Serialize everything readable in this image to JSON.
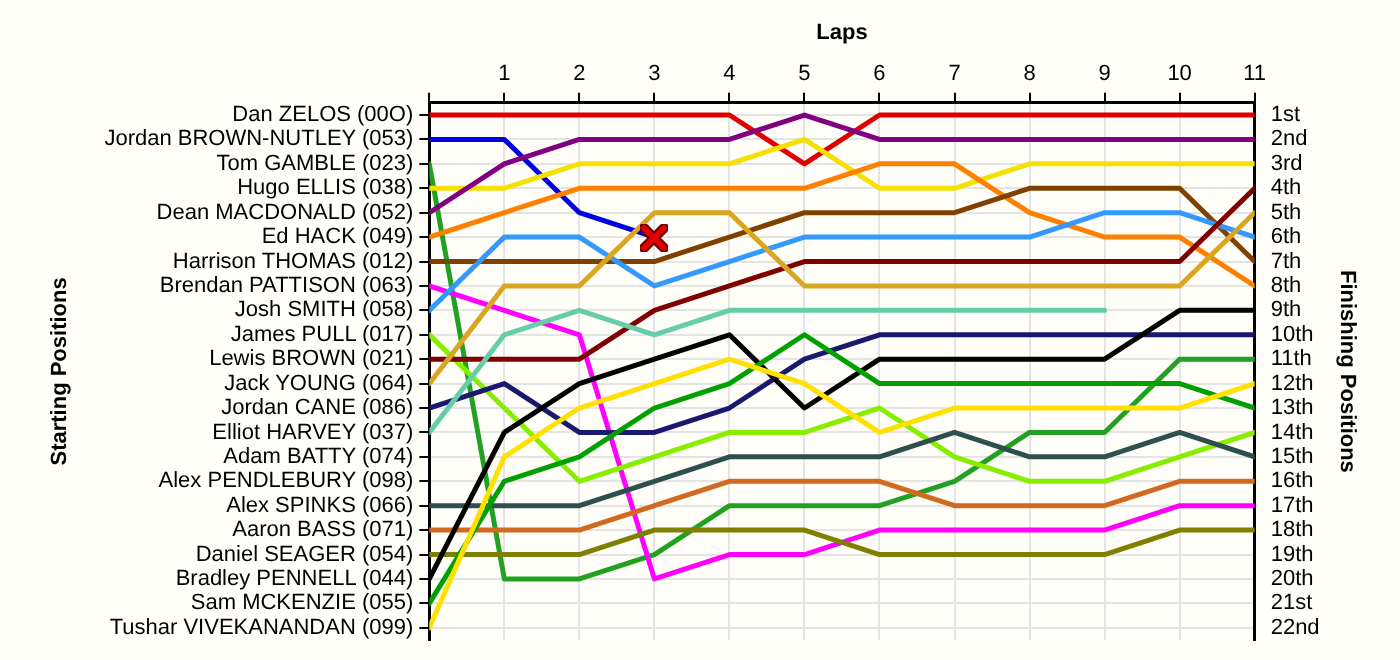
{
  "chart_data": {
    "type": "line",
    "xlabel": "Laps",
    "y2label": "Finishing Positions",
    "annotations": [
      "Starting Positions"
    ],
    "x": [
      0,
      1,
      2,
      3,
      4,
      5,
      6,
      7,
      8,
      9,
      10,
      11
    ],
    "xlim": [
      0,
      11
    ],
    "xticks": [
      {
        "value": 0,
        "label": null
      },
      1,
      2,
      3,
      4,
      5,
      6,
      7,
      8,
      9,
      10,
      11
    ],
    "y_categories": [
      "Dan ZELOS (00O)",
      "Jordan BROWN-NUTLEY (053)",
      "Tom GAMBLE (023)",
      "Hugo ELLIS (038)",
      "Dean MACDONALD (052)",
      "Ed HACK (049)",
      "Harrison THOMAS (012)",
      "Brendan PATTISON (063)",
      "Josh SMITH (058)",
      "James PULL (017)",
      "Lewis BROWN (021)",
      "Jack YOUNG (064)",
      "Jordan CANE (086)",
      "Elliot HARVEY (037)",
      "Adam BATTY (074)",
      "Alex PENDLEBURY (098)",
      "Alex SPINKS (066)",
      "Aaron BASS (071)",
      "Daniel SEAGER (054)",
      "Bradley PENNELL (044)",
      "Sam MCKENZIE (055)",
      "Tushar VIVEKANANDAN (099)"
    ],
    "y2lim": [
      22.5,
      0.5
    ],
    "y2ticks": [
      {
        "value": 1,
        "label": "1st"
      },
      {
        "value": 2,
        "label": "2nd"
      },
      {
        "value": 3,
        "label": "3rd"
      },
      {
        "value": 4,
        "label": "4th"
      },
      {
        "value": 5,
        "label": "5th"
      },
      {
        "value": 6,
        "label": "6th"
      },
      {
        "value": 7,
        "label": "7th"
      },
      {
        "value": 8,
        "label": "8th"
      },
      {
        "value": 9,
        "label": "9th"
      },
      {
        "value": 10,
        "label": "10th"
      },
      {
        "value": 11,
        "label": "11th"
      },
      {
        "value": 12,
        "label": "12th"
      },
      {
        "value": 13,
        "label": "13th"
      },
      {
        "value": 14,
        "label": "14th"
      },
      {
        "value": 15,
        "label": "15th"
      },
      {
        "value": 16,
        "label": "16th"
      },
      {
        "value": 17,
        "label": "17th"
      },
      {
        "value": 18,
        "label": "18th"
      },
      {
        "value": 19,
        "label": "19th"
      },
      {
        "value": 20,
        "label": "20th"
      },
      {
        "value": 21,
        "label": "21st"
      },
      {
        "value": 22,
        "label": "22nd"
      }
    ],
    "grid": true,
    "legend": false,
    "marker": "none",
    "line_style": "solid",
    "series": [
      {
        "color": "#e00000",
        "axis": "y2",
        "values": [
          1,
          1,
          1,
          1,
          1,
          3,
          1,
          1,
          1,
          1,
          1,
          1
        ]
      },
      {
        "color": "#0000e0",
        "axis": "y2",
        "values": [
          2,
          2,
          5,
          6,
          null,
          null,
          null,
          null,
          null,
          null,
          null,
          null
        ]
      },
      {
        "color": "#22a022",
        "axis": "y2",
        "values": [
          3,
          20,
          20,
          19,
          17,
          17,
          17,
          16,
          14,
          14,
          11,
          11
        ]
      },
      {
        "color": "#f5e000",
        "axis": "y2",
        "values": [
          4,
          4,
          3,
          3,
          3,
          2,
          4,
          4,
          3,
          3,
          3,
          3
        ]
      },
      {
        "color": "#800080",
        "axis": "y2",
        "values": [
          5,
          3,
          2,
          2,
          2,
          1,
          2,
          2,
          2,
          2,
          2,
          2
        ]
      },
      {
        "color": "#ff8000",
        "axis": "y2",
        "values": [
          6,
          5,
          4,
          4,
          4,
          4,
          3,
          3,
          5,
          6,
          6,
          8
        ]
      },
      {
        "color": "#804000",
        "axis": "y2",
        "values": [
          7,
          7,
          7,
          7,
          6,
          5,
          5,
          5,
          4,
          4,
          4,
          7
        ]
      },
      {
        "color": "#ff00ff",
        "axis": "y2",
        "values": [
          8,
          9,
          10,
          20,
          19,
          19,
          18,
          18,
          18,
          18,
          17,
          17
        ]
      },
      {
        "color": "#3399ff",
        "axis": "y2",
        "values": [
          9,
          6,
          6,
          8,
          7,
          6,
          6,
          6,
          6,
          5,
          5,
          6
        ]
      },
      {
        "color": "#88ee00",
        "axis": "y2",
        "values": [
          10,
          13,
          16,
          15,
          14,
          14,
          13,
          15,
          16,
          16,
          15,
          14
        ]
      },
      {
        "color": "#800000",
        "axis": "y2",
        "values": [
          11,
          11,
          11,
          9,
          8,
          7,
          7,
          7,
          7,
          7,
          7,
          4
        ]
      },
      {
        "color": "#daa520",
        "axis": "y2",
        "values": [
          12,
          8,
          8,
          5,
          5,
          8,
          8,
          8,
          8,
          8,
          8,
          5
        ]
      },
      {
        "color": "#191970",
        "axis": "y2",
        "values": [
          13,
          12,
          14,
          14,
          13,
          11,
          10,
          10,
          10,
          10,
          10,
          10
        ]
      },
      {
        "color": "#66cdaa",
        "axis": "y2",
        "values": [
          14,
          10,
          9,
          10,
          9,
          9,
          9,
          9,
          9,
          9,
          null,
          null
        ]
      },
      {
        "color": "#2f4f4f",
        "axis": "y2",
        "values": [
          17,
          17,
          17,
          16,
          15,
          15,
          15,
          14,
          15,
          15,
          14,
          15
        ]
      },
      {
        "color": "#d2691e",
        "axis": "y2",
        "values": [
          18,
          18,
          18,
          17,
          16,
          16,
          16,
          17,
          17,
          17,
          16,
          16
        ]
      },
      {
        "color": "#808000",
        "axis": "y2",
        "values": [
          19,
          19,
          19,
          18,
          18,
          18,
          19,
          19,
          19,
          19,
          18,
          18
        ]
      },
      {
        "color": "#000000",
        "axis": "y2",
        "values": [
          20,
          14,
          12,
          11,
          10,
          13,
          11,
          11,
          11,
          11,
          9,
          9
        ]
      },
      {
        "color": "#00a000",
        "axis": "y2",
        "values": [
          21,
          16,
          15,
          13,
          12,
          10,
          12,
          12,
          12,
          12,
          12,
          13
        ]
      },
      {
        "color": "#ffe000",
        "axis": "y2",
        "values": [
          22,
          15,
          13,
          12,
          11,
          12,
          14,
          13,
          13,
          13,
          13,
          12
        ]
      }
    ]
  }
}
